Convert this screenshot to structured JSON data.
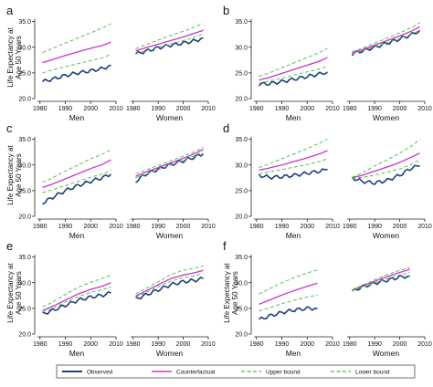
{
  "legend": {
    "items": [
      {
        "label": "Observed",
        "color": "#1f3f7a",
        "dash": "solid"
      },
      {
        "label": "Counterfactual",
        "color": "#cc33cc",
        "dash": "solid"
      },
      {
        "label": "Upper bound",
        "color": "#44bb44",
        "dash": "dashed"
      },
      {
        "label": "Lower bound",
        "color": "#44bb44",
        "dash": "dashed"
      }
    ]
  },
  "chart_data": [
    {
      "panel": "a",
      "type": "line",
      "ylabel": "Life Expectancy at Age 50 Years",
      "ylim": [
        20,
        36
      ],
      "yticks": [
        "20.0",
        "25.0",
        "30.0",
        "35.0"
      ],
      "xticks": [
        "1980",
        "1990",
        "2000",
        "2010"
      ],
      "xlim": [
        1979,
        2010
      ],
      "men": {
        "xlabel": "Men",
        "x": [
          1981,
          1985,
          1990,
          1995,
          2000,
          2005,
          2008
        ],
        "series": [
          {
            "name": "Observed",
            "values": [
              23.3,
              23.8,
              24.5,
              25.0,
              25.4,
              25.9,
              26.5
            ]
          },
          {
            "name": "Counterfactual",
            "values": [
              27.0,
              27.6,
              28.4,
              29.1,
              29.8,
              30.4,
              31.0
            ]
          },
          {
            "name": "Upper bound",
            "values": [
              29.0,
              29.8,
              30.8,
              31.8,
              32.8,
              33.8,
              34.6
            ]
          },
          {
            "name": "Lower bound",
            "values": [
              25.0,
              25.6,
              26.2,
              26.8,
              27.4,
              28.0,
              28.6
            ]
          }
        ]
      },
      "women": {
        "xlabel": "Women",
        "x": [
          1981,
          1985,
          1990,
          1995,
          2000,
          2005,
          2008
        ],
        "series": [
          {
            "name": "Observed",
            "values": [
              28.7,
              29.2,
              29.9,
              30.4,
              30.8,
              31.3,
              31.8
            ]
          },
          {
            "name": "Counterfactual",
            "values": [
              29.3,
              29.9,
              30.6,
              31.3,
              32.0,
              32.8,
              33.3
            ]
          },
          {
            "name": "Upper bound",
            "values": [
              29.7,
              30.5,
              31.4,
              32.3,
              33.1,
              34.0,
              34.6
            ]
          },
          {
            "name": "Lower bound",
            "values": [
              28.8,
              29.3,
              30.0,
              30.6,
              31.3,
              32.0,
              32.6
            ]
          }
        ]
      }
    },
    {
      "panel": "b",
      "type": "line",
      "ylabel": "",
      "ylim": [
        20,
        36
      ],
      "yticks": [
        "20.0",
        "25.0",
        "30.0",
        "35.0"
      ],
      "xticks": [
        "1980",
        "1990",
        "2000",
        "2010"
      ],
      "xlim": [
        1979,
        2010
      ],
      "men": {
        "xlabel": "Men",
        "x": [
          1981,
          1985,
          1990,
          1995,
          2000,
          2005,
          2008
        ],
        "series": [
          {
            "name": "Observed",
            "values": [
              22.8,
              22.9,
              23.3,
              23.8,
              24.3,
              24.8,
              25.2
            ]
          },
          {
            "name": "Counterfactual",
            "values": [
              23.6,
              24.1,
              24.9,
              25.7,
              26.5,
              27.3,
              28.0
            ]
          },
          {
            "name": "Upper bound",
            "values": [
              24.3,
              25.0,
              26.0,
              27.0,
              28.0,
              29.0,
              29.8
            ]
          },
          {
            "name": "Lower bound",
            "values": [
              23.0,
              23.4,
              24.0,
              24.6,
              25.2,
              25.8,
              26.3
            ]
          }
        ]
      },
      "women": {
        "xlabel": "Women",
        "x": [
          1981,
          1985,
          1990,
          1995,
          2000,
          2005,
          2008
        ],
        "series": [
          {
            "name": "Observed",
            "values": [
              28.7,
              29.3,
              30.0,
              30.8,
              31.6,
              32.5,
              33.3
            ]
          },
          {
            "name": "Counterfactual",
            "values": [
              28.9,
              29.5,
              30.4,
              31.3,
              32.2,
              33.2,
              34.0
            ]
          },
          {
            "name": "Upper bound",
            "values": [
              29.1,
              29.8,
              30.8,
              31.8,
              32.8,
              33.9,
              34.8
            ]
          },
          {
            "name": "Lower bound",
            "values": [
              28.7,
              29.3,
              30.1,
              30.9,
              31.7,
              32.6,
              33.3
            ]
          }
        ]
      }
    },
    {
      "panel": "c",
      "type": "line",
      "ylabel": "Life Expectancy at Age 50 Years",
      "ylim": [
        20,
        36
      ],
      "yticks": [
        "20.0",
        "25.0",
        "30.0",
        "35.0"
      ],
      "xticks": [
        "1980",
        "1990",
        "2000",
        "2010"
      ],
      "xlim": [
        1979,
        2010
      ],
      "men": {
        "xlabel": "Men",
        "x": [
          1981,
          1985,
          1990,
          1995,
          2000,
          2005,
          2008
        ],
        "series": [
          {
            "name": "Observed",
            "values": [
              22.6,
              23.7,
              25.0,
              26.0,
              26.8,
              27.6,
              28.2
            ]
          },
          {
            "name": "Counterfactual",
            "values": [
              25.6,
              26.3,
              27.3,
              28.3,
              29.3,
              30.2,
              31.0
            ]
          },
          {
            "name": "Upper bound",
            "values": [
              26.6,
              27.5,
              28.8,
              30.0,
              31.2,
              32.2,
              33.0
            ]
          },
          {
            "name": "Lower bound",
            "values": [
              24.6,
              25.2,
              26.0,
              26.8,
              27.6,
              28.3,
              29.0
            ]
          }
        ]
      },
      "women": {
        "xlabel": "Women",
        "x": [
          1981,
          1985,
          1990,
          1995,
          2000,
          2005,
          2008
        ],
        "series": [
          {
            "name": "Observed",
            "values": [
              26.8,
              28.2,
              29.2,
              30.1,
              30.8,
              31.6,
              32.2
            ]
          },
          {
            "name": "Counterfactual",
            "values": [
              27.8,
              28.6,
              29.5,
              30.4,
              31.3,
              32.3,
              33.1
            ]
          },
          {
            "name": "Upper bound",
            "values": [
              28.3,
              29.0,
              29.9,
              30.8,
              31.7,
              32.7,
              33.5
            ]
          },
          {
            "name": "Lower bound",
            "values": [
              27.5,
              28.2,
              29.1,
              30.0,
              30.9,
              31.9,
              32.7
            ]
          }
        ]
      }
    },
    {
      "panel": "d",
      "type": "line",
      "ylabel": "",
      "ylim": [
        20,
        36
      ],
      "yticks": [
        "20.0",
        "25.0",
        "30.0",
        "35.0"
      ],
      "xticks": [
        "1980",
        "1990",
        "2000",
        "2010"
      ],
      "xlim": [
        1979,
        2010
      ],
      "men": {
        "xlabel": "Men",
        "x": [
          1981,
          1985,
          1990,
          1995,
          2000,
          2005,
          2008
        ],
        "series": [
          {
            "name": "Observed",
            "values": [
              28.0,
              27.6,
              27.7,
              28.0,
              28.4,
              28.8,
              29.1
            ]
          },
          {
            "name": "Counterfactual",
            "values": [
              29.0,
              29.4,
              30.0,
              30.7,
              31.4,
              32.2,
              32.8
            ]
          },
          {
            "name": "Upper bound",
            "values": [
              29.5,
              30.2,
              31.2,
              32.2,
              33.2,
              34.3,
              35.0
            ]
          },
          {
            "name": "Lower bound",
            "values": [
              28.3,
              28.6,
              29.1,
              29.6,
              30.1,
              30.7,
              31.2
            ]
          }
        ]
      },
      "women": {
        "xlabel": "Women",
        "x": [
          1981,
          1985,
          1990,
          1995,
          2000,
          2005,
          2008
        ],
        "series": [
          {
            "name": "Observed",
            "values": [
              27.5,
              26.8,
              26.5,
              27.0,
              28.0,
              29.5,
              29.8
            ]
          },
          {
            "name": "Counterfactual",
            "values": [
              27.5,
              28.0,
              28.8,
              29.6,
              30.5,
              31.6,
              32.3
            ]
          },
          {
            "name": "Upper bound",
            "values": [
              27.6,
              28.5,
              29.8,
              31.0,
              32.3,
              33.8,
              35.0
            ]
          },
          {
            "name": "Lower bound",
            "values": [
              27.4,
              27.6,
              28.0,
              28.6,
              29.2,
              30.2,
              31.0
            ]
          }
        ]
      }
    },
    {
      "panel": "e",
      "type": "line",
      "ylabel": "Life Expectancy at Age 50 Years",
      "ylim": [
        20,
        36
      ],
      "yticks": [
        "20.0",
        "25.0",
        "30.0",
        "35.0"
      ],
      "xticks": [
        "1980",
        "1990",
        "2000",
        "2010"
      ],
      "xlim": [
        1979,
        2010
      ],
      "men": {
        "xlabel": "Men",
        "x": [
          1981,
          1985,
          1990,
          1995,
          2000,
          2005,
          2008
        ],
        "series": [
          {
            "name": "Observed",
            "values": [
              23.9,
              24.6,
              25.6,
              26.6,
              27.2,
              27.6,
              28.0
            ]
          },
          {
            "name": "Counterfactual",
            "values": [
              24.6,
              25.4,
              26.6,
              27.8,
              28.7,
              29.4,
              30.0
            ]
          },
          {
            "name": "Upper bound",
            "values": [
              25.3,
              26.2,
              27.7,
              29.1,
              30.1,
              30.9,
              31.5
            ]
          },
          {
            "name": "Lower bound",
            "values": [
              24.3,
              25.0,
              26.2,
              27.3,
              28.1,
              28.7,
              29.2
            ]
          }
        ]
      },
      "women": {
        "xlabel": "Women",
        "x": [
          1981,
          1985,
          1990,
          1995,
          2000,
          2005,
          2008
        ],
        "series": [
          {
            "name": "Observed",
            "values": [
              26.8,
              27.6,
              28.6,
              29.6,
              30.2,
              30.5,
              30.8
            ]
          },
          {
            "name": "Counterfactual",
            "values": [
              27.4,
              28.4,
              29.6,
              30.8,
              31.5,
              32.0,
              32.4
            ]
          },
          {
            "name": "Upper bound",
            "values": [
              27.8,
              28.9,
              30.2,
              31.6,
              32.4,
              32.9,
              33.3
            ]
          },
          {
            "name": "Lower bound",
            "values": [
              27.2,
              28.1,
              29.2,
              30.3,
              31.0,
              31.4,
              31.8
            ]
          }
        ]
      }
    },
    {
      "panel": "f",
      "type": "line",
      "ylabel": "Life Expectancy at Age 50 Years",
      "ylim": [
        20,
        36
      ],
      "yticks": [
        "20.0",
        "25.0",
        "30.0",
        "35.0"
      ],
      "xticks": [
        "1980",
        "1990",
        "2000",
        "2010"
      ],
      "xlim": [
        1979,
        2010
      ],
      "men": {
        "xlabel": "Men",
        "x": [
          1981,
          1985,
          1990,
          1995,
          2000,
          2004
        ],
        "series": [
          {
            "name": "Observed",
            "values": [
              22.8,
              23.5,
              24.2,
              24.7,
              25.0,
              25.0
            ]
          },
          {
            "name": "Counterfactual",
            "values": [
              25.8,
              26.6,
              27.6,
              28.5,
              29.3,
              29.9
            ]
          },
          {
            "name": "Upper bound",
            "values": [
              27.8,
              28.8,
              30.0,
              31.0,
              31.9,
              32.5
            ]
          },
          {
            "name": "Lower bound",
            "values": [
              24.5,
              25.1,
              25.9,
              26.6,
              27.2,
              27.6
            ]
          }
        ]
      },
      "women": {
        "xlabel": "Women",
        "x": [
          1981,
          1985,
          1990,
          1995,
          2000,
          2004
        ],
        "series": [
          {
            "name": "Observed",
            "values": [
              28.3,
              29.2,
              29.9,
              30.5,
              31.1,
              31.3
            ]
          },
          {
            "name": "Counterfactual",
            "values": [
              28.5,
              29.3,
              30.3,
              31.2,
              32.0,
              32.6
            ]
          },
          {
            "name": "Upper bound",
            "values": [
              28.6,
              29.5,
              30.6,
              31.6,
              32.4,
              33.0
            ]
          },
          {
            "name": "Lower bound",
            "values": [
              28.4,
              29.1,
              30.0,
              30.8,
              31.5,
              32.0
            ]
          }
        ]
      }
    }
  ]
}
